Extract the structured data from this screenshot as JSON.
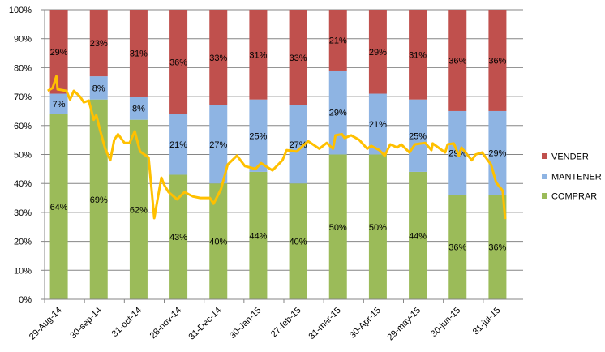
{
  "chart_data": {
    "type": "bar",
    "stacked": true,
    "percent_stacked": true,
    "categories": [
      "29-Aug-14",
      "30-sep-14",
      "31-oct-14",
      "28-nov-14",
      "31-Dec-14",
      "30-Jan-15",
      "27-feb-15",
      "31-mar-15",
      "30-Apr-15",
      "29-may-15",
      "30-jun-15",
      "31-jul-15"
    ],
    "category_dates": [
      "2014-08-29",
      "2014-09-30",
      "2014-10-31",
      "2014-11-28",
      "2014-12-31",
      "2015-01-30",
      "2015-02-27",
      "2015-03-31",
      "2015-04-30",
      "2015-05-29",
      "2015-06-30",
      "2015-07-31"
    ],
    "series": [
      {
        "name": "COMPRAR",
        "color": "#9BBB59",
        "values": [
          64,
          69,
          62,
          43,
          40,
          44,
          40,
          50,
          50,
          44,
          36,
          36
        ]
      },
      {
        "name": "MANTENER",
        "color": "#8EB4E3",
        "values": [
          7,
          8,
          8,
          21,
          27,
          25,
          27,
          29,
          21,
          25,
          29,
          29
        ]
      },
      {
        "name": "VENDER",
        "color": "#C0504D",
        "values": [
          29,
          23,
          31,
          36,
          33,
          31,
          33,
          21,
          29,
          31,
          36,
          36
        ]
      }
    ],
    "data_label_suffix": "%",
    "overlay_line": {
      "type": "line",
      "color": "#FFC000",
      "points": [
        [
          "2014-08-20",
          72
        ],
        [
          "2014-08-24",
          73
        ],
        [
          "2014-08-27",
          77
        ],
        [
          "2014-08-28",
          72.5
        ],
        [
          "2014-09-04",
          72
        ],
        [
          "2014-09-07",
          69
        ],
        [
          "2014-09-10",
          72
        ],
        [
          "2014-09-15",
          70
        ],
        [
          "2014-09-18",
          68
        ],
        [
          "2014-09-22",
          68.6
        ],
        [
          "2014-09-26",
          62
        ],
        [
          "2014-09-28",
          63.6
        ],
        [
          "2014-10-01",
          58.5
        ],
        [
          "2014-10-05",
          52
        ],
        [
          "2014-10-09",
          48
        ],
        [
          "2014-10-12",
          55
        ],
        [
          "2014-10-15",
          57
        ],
        [
          "2014-10-20",
          54
        ],
        [
          "2014-10-24",
          54
        ],
        [
          "2014-10-28",
          58
        ],
        [
          "2014-11-01",
          51
        ],
        [
          "2014-11-07",
          49
        ],
        [
          "2014-11-11",
          28
        ],
        [
          "2014-11-16",
          42
        ],
        [
          "2014-11-18",
          39.5
        ],
        [
          "2014-11-21",
          37
        ],
        [
          "2014-11-27",
          34.5
        ],
        [
          "2014-12-03",
          37
        ],
        [
          "2014-12-10",
          35.5
        ],
        [
          "2014-12-16",
          35
        ],
        [
          "2014-12-24",
          35
        ],
        [
          "2014-12-27",
          33
        ],
        [
          "2015-01-02",
          38
        ],
        [
          "2015-01-07",
          46.5
        ],
        [
          "2015-01-14",
          49.6
        ],
        [
          "2015-01-20",
          46
        ],
        [
          "2015-01-28",
          45
        ],
        [
          "2015-02-01",
          47
        ],
        [
          "2015-02-09",
          44.5
        ],
        [
          "2015-02-16",
          48
        ],
        [
          "2015-02-19",
          51.5
        ],
        [
          "2015-02-26",
          51
        ],
        [
          "2015-03-07",
          54.6
        ],
        [
          "2015-03-16",
          52
        ],
        [
          "2015-03-22",
          54
        ],
        [
          "2015-03-27",
          52
        ],
        [
          "2015-03-29",
          56.6
        ],
        [
          "2015-04-03",
          57
        ],
        [
          "2015-04-05",
          55.7
        ],
        [
          "2015-04-10",
          56.6
        ],
        [
          "2015-04-16",
          55
        ],
        [
          "2015-04-22",
          52
        ],
        [
          "2015-04-25",
          53
        ],
        [
          "2015-05-01",
          51.5
        ],
        [
          "2015-05-05",
          49.6
        ],
        [
          "2015-05-09",
          53.5
        ],
        [
          "2015-05-14",
          52.4
        ],
        [
          "2015-05-17",
          53.5
        ],
        [
          "2015-05-23",
          50.7
        ],
        [
          "2015-05-27",
          53.5
        ],
        [
          "2015-06-04",
          54
        ],
        [
          "2015-06-09",
          51.5
        ],
        [
          "2015-06-10",
          53.8
        ],
        [
          "2015-06-20",
          50.7
        ],
        [
          "2015-06-22",
          53.5
        ],
        [
          "2015-06-27",
          53.8
        ],
        [
          "2015-07-01",
          49.6
        ],
        [
          "2015-07-03",
          52.4
        ],
        [
          "2015-07-11",
          48
        ],
        [
          "2015-07-14",
          50
        ],
        [
          "2015-07-19",
          50.7
        ],
        [
          "2015-07-26",
          46.5
        ],
        [
          "2015-07-30",
          40.3
        ],
        [
          "2015-08-04",
          37.5
        ],
        [
          "2015-08-06",
          27.7
        ]
      ]
    },
    "ylim": [
      0,
      100
    ],
    "yticks": [
      "0%",
      "10%",
      "20%",
      "30%",
      "40%",
      "50%",
      "60%",
      "70%",
      "80%",
      "90%",
      "100%"
    ],
    "grid": true,
    "legend": {
      "placement": "right",
      "entries": [
        "VENDER",
        "MANTENER",
        "COMPRAR"
      ]
    },
    "title": "",
    "xlabel": "",
    "ylabel": ""
  }
}
